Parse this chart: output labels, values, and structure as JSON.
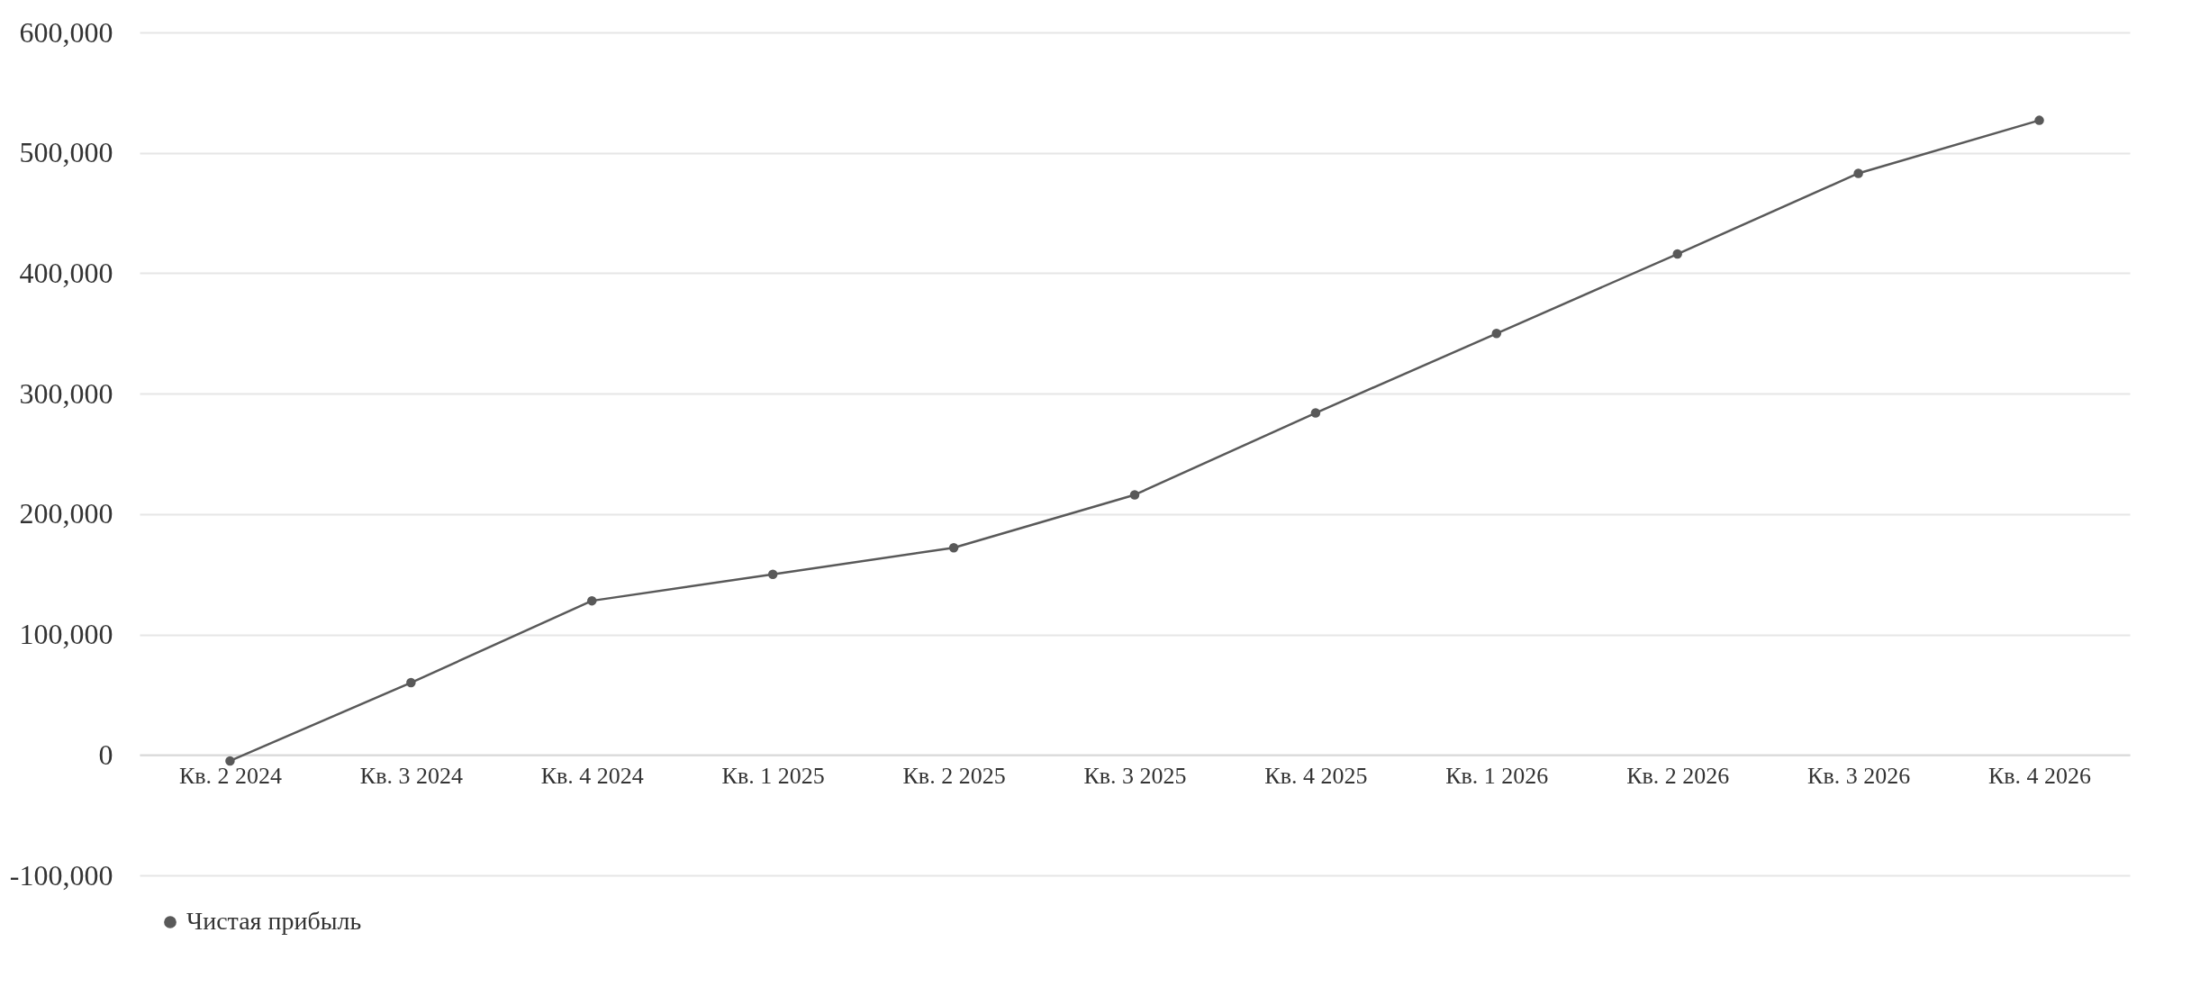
{
  "chart_data": {
    "type": "line",
    "categories": [
      "Кв. 2 2024",
      "Кв. 3 2024",
      "Кв. 4 2024",
      "Кв. 1 2025",
      "Кв. 2 2025",
      "Кв. 3 2025",
      "Кв. 4 2025",
      "Кв. 1 2026",
      "Кв. 2 2026",
      "Кв. 3 2026",
      "Кв. 4 2026"
    ],
    "series": [
      {
        "name": "Чистая прибыль",
        "color": "#595959",
        "values": [
          -5000,
          60000,
          128000,
          150000,
          172000,
          216000,
          284000,
          350000,
          416000,
          483000,
          527000
        ]
      }
    ],
    "ylim": [
      -100000,
      600000
    ],
    "yticks": [
      {
        "value": -100000,
        "label": "-100,000"
      },
      {
        "value": 0,
        "label": "0"
      },
      {
        "value": 100000,
        "label": "100,000"
      },
      {
        "value": 200000,
        "label": "200,000"
      },
      {
        "value": 300000,
        "label": "300,000"
      },
      {
        "value": 400000,
        "label": "400,000"
      },
      {
        "value": 500000,
        "label": "500,000"
      },
      {
        "value": 600000,
        "label": "600,000"
      }
    ],
    "grid": "y",
    "legend": "bottom",
    "marker": "circle",
    "line_style": "solid"
  }
}
